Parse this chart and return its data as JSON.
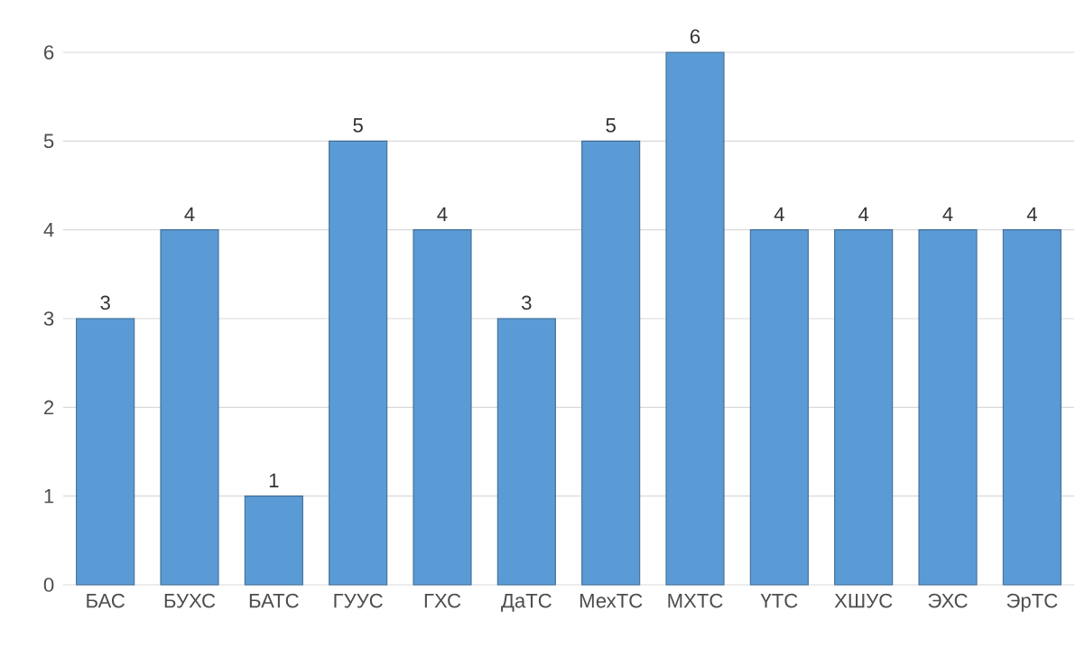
{
  "chart_data": {
    "type": "bar",
    "categories": [
      "БАС",
      "БУХС",
      "БАТС",
      "ГУУС",
      "ГХС",
      "ДаТС",
      "МехТС",
      "МХТС",
      "ҮТС",
      "ХШУС",
      "ЭХС",
      "ЭрТС"
    ],
    "values": [
      3,
      4,
      1,
      5,
      4,
      3,
      5,
      6,
      4,
      4,
      4,
      4
    ],
    "color": "#5b9bd5",
    "ylim": [
      0,
      6
    ],
    "yticks": [
      0,
      1,
      2,
      3,
      4,
      5,
      6
    ],
    "grid": "y",
    "data_labels": true
  }
}
